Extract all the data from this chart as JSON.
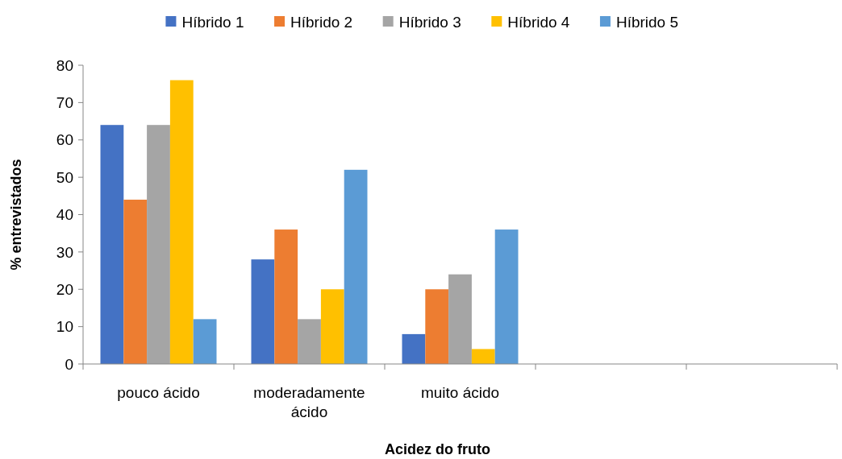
{
  "chart_data": {
    "type": "bar",
    "xlabel": "Acidez do fruto",
    "ylabel": "% entrevistados",
    "categories": [
      "pouco ácido",
      "moderadamente ácido",
      "muito ácido",
      null,
      null
    ],
    "series": [
      {
        "name": "Híbrido 1",
        "color": "#4472c4",
        "values": [
          64,
          28,
          8,
          null,
          null
        ]
      },
      {
        "name": "Híbrido 2",
        "color": "#ed7d31",
        "values": [
          44,
          36,
          20,
          null,
          null
        ]
      },
      {
        "name": "Híbrido 3",
        "color": "#a5a5a5",
        "values": [
          64,
          12,
          24,
          null,
          null
        ]
      },
      {
        "name": "Híbrido 4",
        "color": "#ffc000",
        "values": [
          76,
          20,
          4,
          null,
          null
        ]
      },
      {
        "name": "Híbrido 5",
        "color": "#5b9bd5",
        "values": [
          12,
          52,
          36,
          null,
          null
        ]
      }
    ],
    "ylim": [
      0,
      80
    ],
    "yticks": [
      0,
      10,
      20,
      30,
      40,
      50,
      60,
      70,
      80
    ],
    "grid": false,
    "legend": "top"
  }
}
